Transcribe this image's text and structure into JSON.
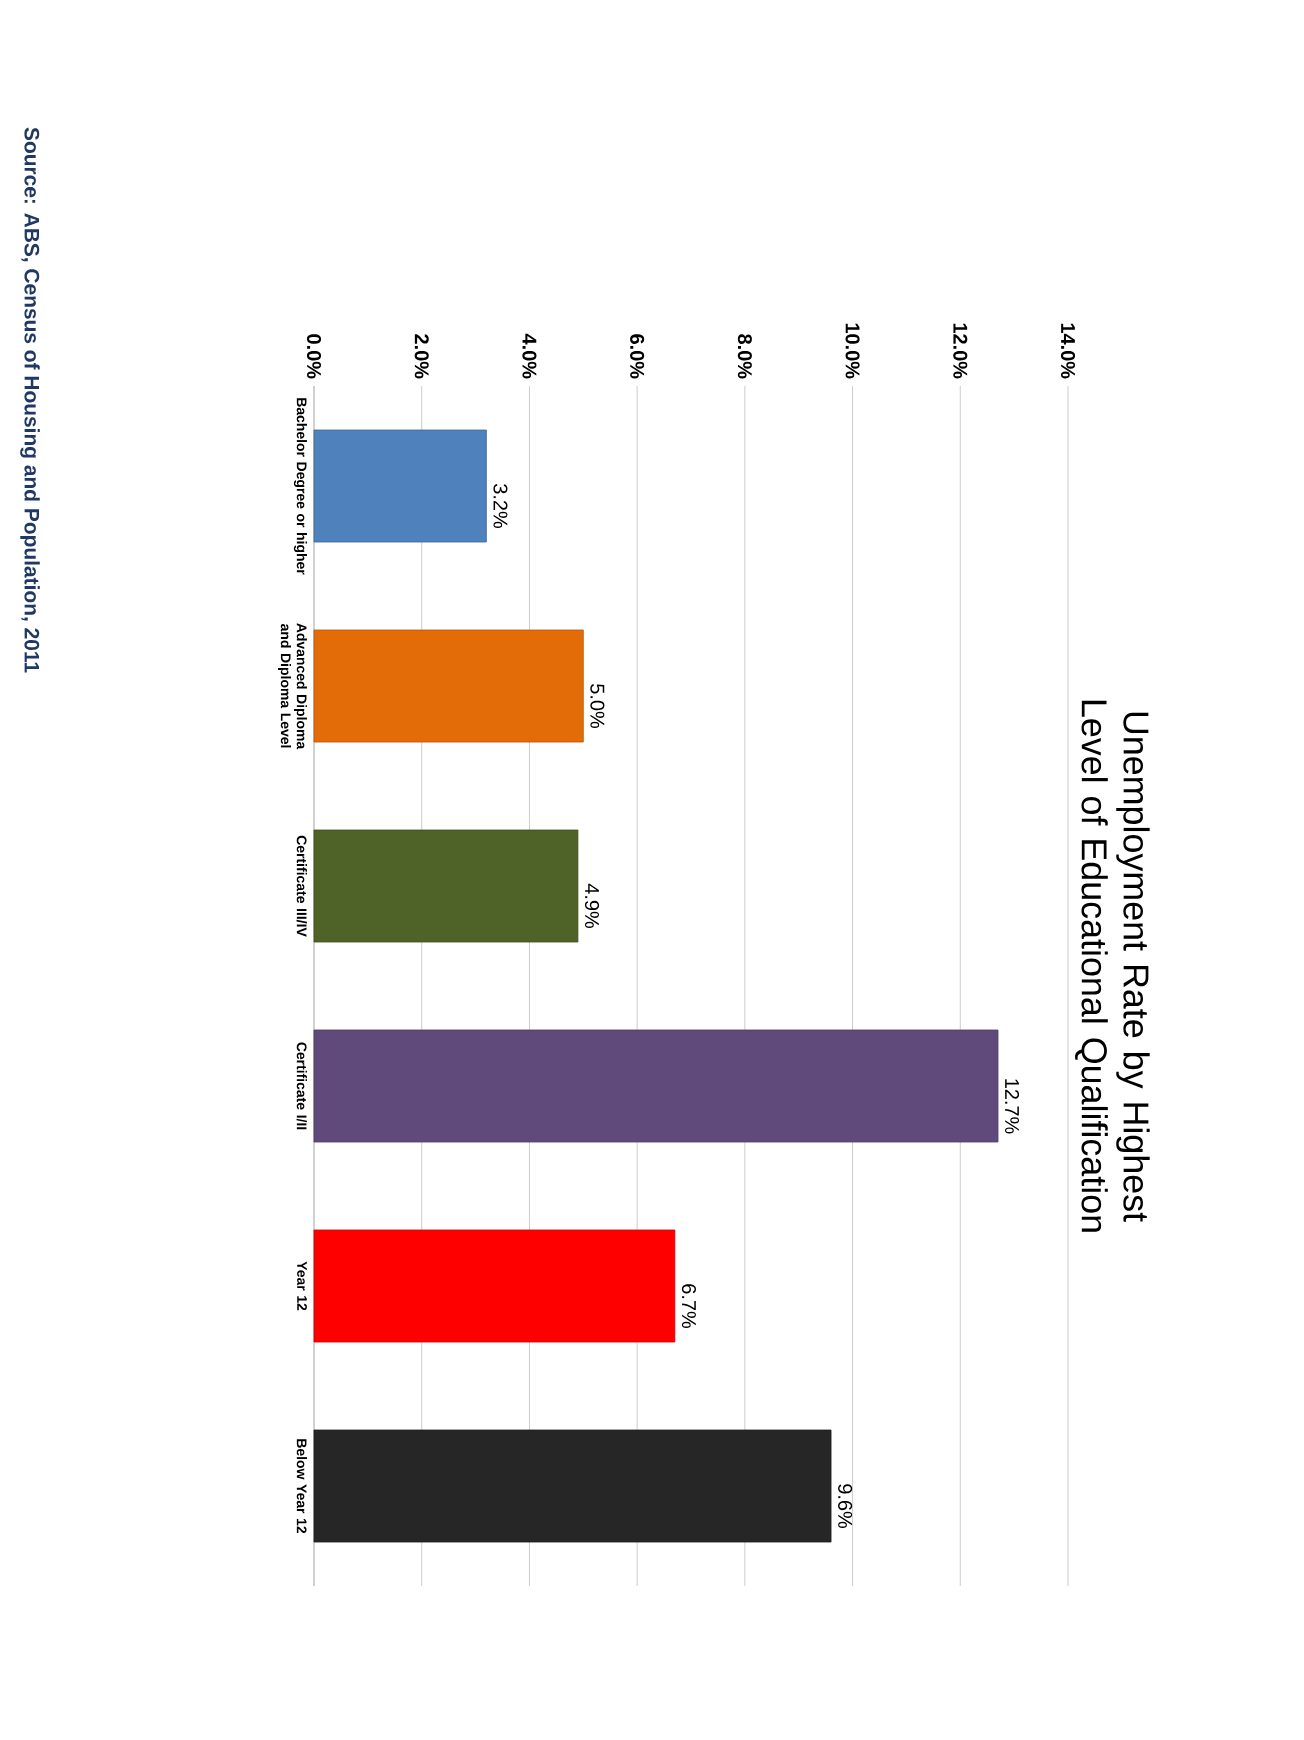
{
  "chart_data": {
    "type": "bar",
    "orientation": "horizontal",
    "title": "Unemployment Rate by Highest Level of Educational Qualification",
    "categories": [
      "Bachelor Degree or higher",
      "Advanced Diploma and Diploma Level",
      "Certificate III/IV",
      "Certificate I/II",
      "Year 12",
      "Below Year 12"
    ],
    "values": [
      3.2,
      5.0,
      4.9,
      12.7,
      6.7,
      9.6
    ],
    "colors": [
      "#4f81bd",
      "#e36c09",
      "#4f6228",
      "#604a7b",
      "#ff0000",
      "#262626"
    ],
    "value_labels": [
      "3.2%",
      "5.0%",
      "4.9%",
      "12.7%",
      "6.7%",
      "9.6%"
    ],
    "xlim": [
      0,
      14
    ],
    "xticks": [
      {
        "value": 0,
        "label": "0.0%"
      },
      {
        "value": 2,
        "label": "2.0%"
      },
      {
        "value": 4,
        "label": "4.0%"
      },
      {
        "value": 6,
        "label": "6.0%"
      },
      {
        "value": 8,
        "label": "8.0%"
      },
      {
        "value": 10,
        "label": "10.0%"
      },
      {
        "value": 12,
        "label": "12.0%"
      },
      {
        "value": 14,
        "label": "14.0%"
      }
    ],
    "grid": "x",
    "annotations": [
      "Source: ABS, Census of Housing and Population, 2011"
    ]
  }
}
